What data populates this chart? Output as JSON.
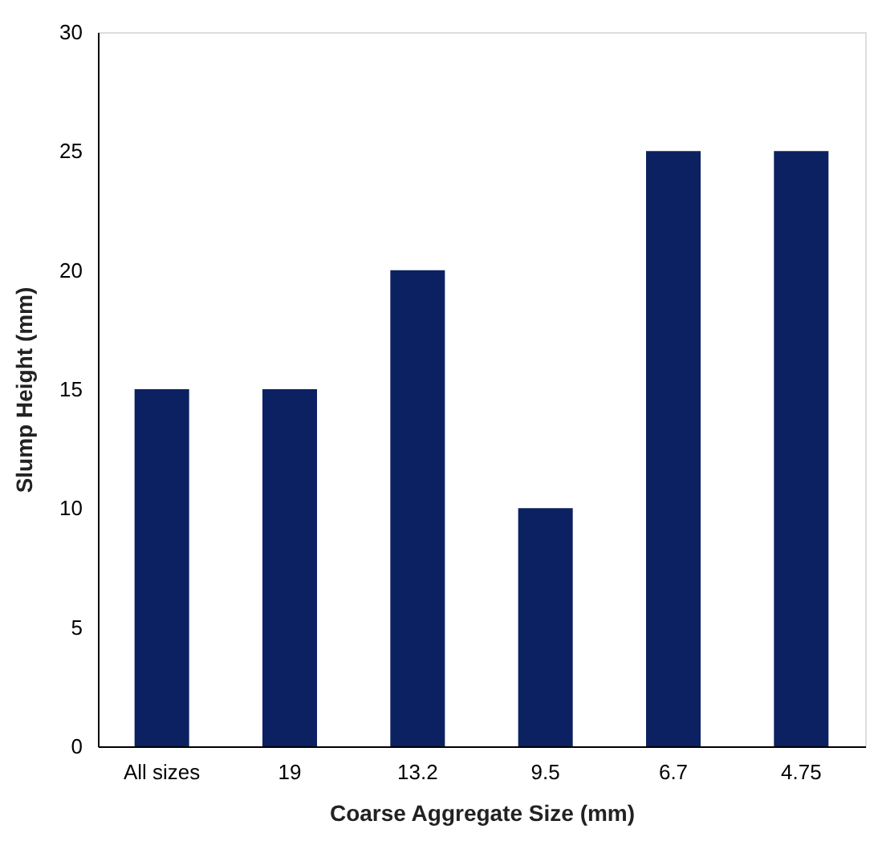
{
  "chart_data": {
    "type": "bar",
    "xlabel": "Coarse Aggregate Size (mm)",
    "ylabel": "Slump Height (mm)",
    "categories": [
      "All sizes",
      "19",
      "13.2",
      "9.5",
      "6.7",
      "4.75"
    ],
    "values": [
      15,
      15,
      20,
      10,
      25,
      25
    ],
    "color": "#0b2161",
    "ylim": [
      0,
      30
    ],
    "yticks": [
      0,
      5,
      10,
      15,
      20,
      25,
      30
    ],
    "grid": false
  }
}
